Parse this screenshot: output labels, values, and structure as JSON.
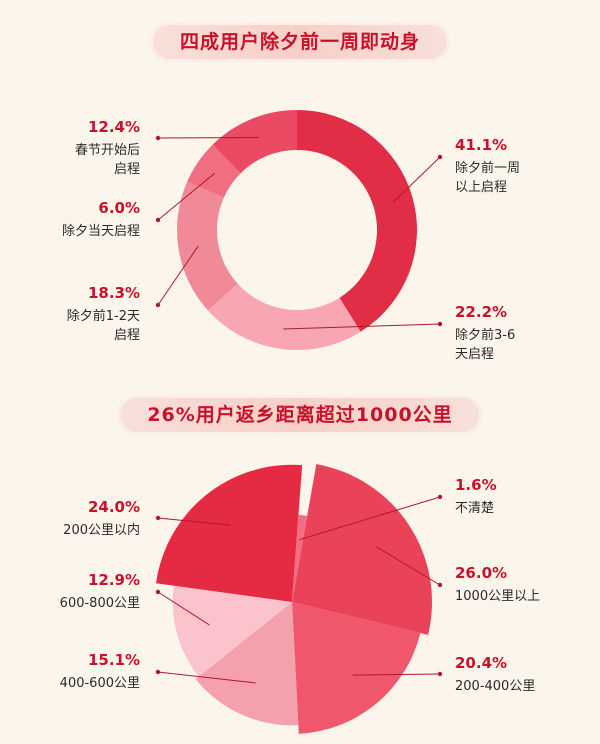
{
  "chart_data": [
    {
      "type": "pie",
      "style": "donut",
      "title": "四成用户除夕前一周即动身",
      "colors": [
        "#e12d46",
        "#f8a7b2",
        "#f08a98",
        "#f16d82",
        "#ea4a63"
      ],
      "slices": [
        {
          "value": 41.1,
          "value_label": "41.1%",
          "label": [
            "除夕前一周",
            "以上启程"
          ]
        },
        {
          "value": 22.2,
          "value_label": "22.2%",
          "label": [
            "除夕前3-6",
            "天启程"
          ]
        },
        {
          "value": 18.3,
          "value_label": "18.3%",
          "label": [
            "除夕前1-2天",
            "启程"
          ]
        },
        {
          "value": 6.0,
          "value_label": "6.0%",
          "label": [
            "除夕当天启程"
          ]
        },
        {
          "value": 12.4,
          "value_label": "12.4%",
          "label": [
            "春节开始后",
            "启程"
          ]
        }
      ]
    },
    {
      "type": "pie",
      "style": "rose",
      "title": "26%用户返乡距离超过1000公里",
      "colors": [
        "#ea4259",
        "#f0566c",
        "#f4a0ad",
        "#fbc3cb",
        "#e52b44",
        "#f26c82"
      ],
      "slices": [
        {
          "value": 26.0,
          "value_label": "26.0%",
          "label": [
            "1000公里以上"
          ]
        },
        {
          "value": 20.4,
          "value_label": "20.4%",
          "label": [
            "200-400公里"
          ]
        },
        {
          "value": 15.1,
          "value_label": "15.1%",
          "label": [
            "400-600公里"
          ]
        },
        {
          "value": 12.9,
          "value_label": "12.9%",
          "label": [
            "600-800公里"
          ]
        },
        {
          "value": 24.0,
          "value_label": "24.0%",
          "label": [
            "200公里以内"
          ]
        },
        {
          "value": 1.6,
          "value_label": "1.6%",
          "label": [
            "不清楚"
          ]
        }
      ]
    }
  ]
}
